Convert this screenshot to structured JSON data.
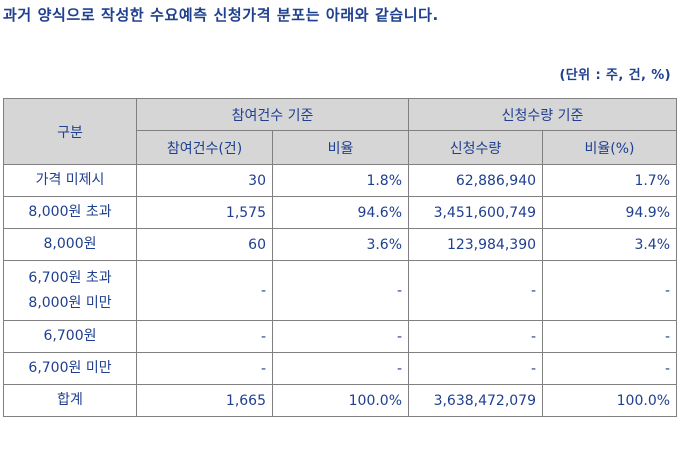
{
  "heading": "과거 양식으로 작성한 수요예측 신청가격 분포는 아래와 같습니다.",
  "unit_note": "(단위 : 주, 건, %)",
  "table": {
    "header": {
      "category": "구분",
      "group_count": "참여건수 기준",
      "group_quantity": "신청수량 기준",
      "col_count": "참여건수(건)",
      "col_count_ratio": "비율",
      "col_quantity": "신청수량",
      "col_quantity_ratio": "비율(%)"
    },
    "rows": [
      {
        "label_lines": [
          "가격 미제시"
        ],
        "count": "30",
        "count_ratio": "1.8%",
        "quantity": "62,886,940",
        "quantity_ratio": "1.7%"
      },
      {
        "label_lines": [
          "8,000원 초과"
        ],
        "count": "1,575",
        "count_ratio": "94.6%",
        "quantity": "3,451,600,749",
        "quantity_ratio": "94.9%"
      },
      {
        "label_lines": [
          "8,000원"
        ],
        "count": "60",
        "count_ratio": "3.6%",
        "quantity": "123,984,390",
        "quantity_ratio": "3.4%"
      },
      {
        "label_lines": [
          "6,700원 초과",
          "8,000원 미만"
        ],
        "count": "-",
        "count_ratio": "-",
        "quantity": "-",
        "quantity_ratio": "-"
      },
      {
        "label_lines": [
          "6,700원"
        ],
        "count": "-",
        "count_ratio": "-",
        "quantity": "-",
        "quantity_ratio": "-"
      },
      {
        "label_lines": [
          "6,700원 미만"
        ],
        "count": "-",
        "count_ratio": "-",
        "quantity": "-",
        "quantity_ratio": "-"
      },
      {
        "label_lines": [
          "합계"
        ],
        "count": "1,665",
        "count_ratio": "100.0%",
        "quantity": "3,638,472,079",
        "quantity_ratio": "100.0%"
      }
    ]
  }
}
